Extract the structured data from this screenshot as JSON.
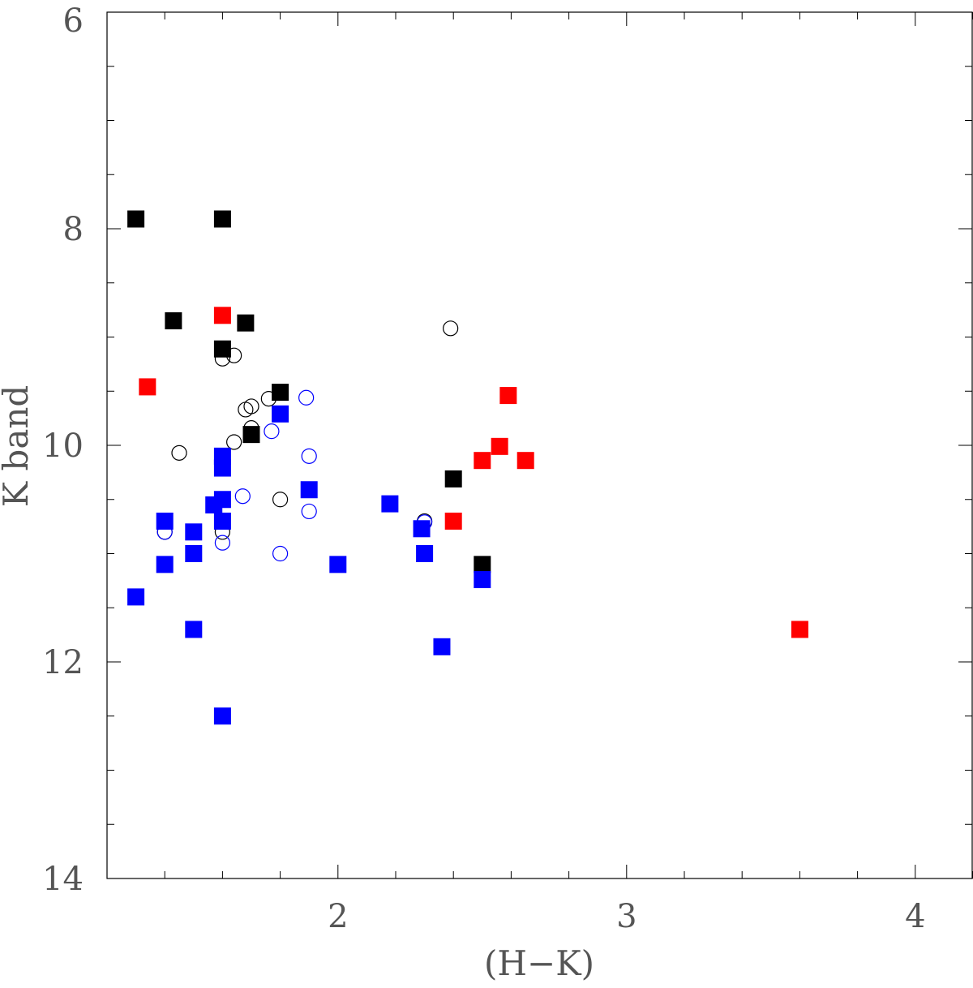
{
  "chart_data": {
    "type": "scatter",
    "title": "",
    "xlabel": "(H−K)",
    "ylabel": "K band",
    "xlim": [
      1.2,
      4.2
    ],
    "ylim": [
      14,
      6
    ],
    "y_inverted": true,
    "grid": false,
    "x_ticks": [
      {
        "value": 2,
        "label": "2"
      },
      {
        "value": 3,
        "label": "3"
      },
      {
        "value": 4,
        "label": "4"
      }
    ],
    "y_ticks": [
      {
        "value": 6,
        "label": "6"
      },
      {
        "value": 8,
        "label": "8"
      },
      {
        "value": 10,
        "label": "10"
      },
      {
        "value": 12,
        "label": "12"
      },
      {
        "value": 14,
        "label": "14"
      }
    ],
    "series": [
      {
        "marker": "open-circle",
        "color": "#000000",
        "points": [
          [
            1.6,
            9.2
          ],
          [
            1.64,
            9.17
          ],
          [
            1.45,
            10.07
          ],
          [
            1.64,
            9.97
          ],
          [
            1.68,
            9.67
          ],
          [
            1.7,
            9.64
          ],
          [
            1.7,
            9.84
          ],
          [
            1.76,
            9.57
          ],
          [
            1.8,
            10.5
          ],
          [
            2.39,
            8.92
          ],
          [
            2.3,
            10.7
          ],
          [
            1.4,
            10.8
          ],
          [
            1.6,
            10.8
          ]
        ]
      },
      {
        "marker": "open-circle",
        "color": "#0000ff",
        "points": [
          [
            1.89,
            9.56
          ],
          [
            1.77,
            9.87
          ],
          [
            1.9,
            10.1
          ],
          [
            1.67,
            10.47
          ],
          [
            1.9,
            10.61
          ],
          [
            1.6,
            10.9
          ],
          [
            1.8,
            11.0
          ],
          [
            2.3,
            10.71
          ],
          [
            1.4,
            10.8
          ]
        ]
      },
      {
        "marker": "filled-square",
        "color": "#000000",
        "points": [
          [
            1.3,
            7.91
          ],
          [
            1.6,
            7.91
          ],
          [
            1.43,
            8.85
          ],
          [
            1.68,
            8.87
          ],
          [
            1.6,
            9.11
          ],
          [
            1.8,
            9.51
          ],
          [
            1.7,
            9.9
          ],
          [
            2.4,
            10.31
          ],
          [
            2.5,
            11.1
          ]
        ]
      },
      {
        "marker": "filled-square",
        "color": "#ff0000",
        "points": [
          [
            1.6,
            8.8
          ],
          [
            1.34,
            9.46
          ],
          [
            2.59,
            9.54
          ],
          [
            2.56,
            10.01
          ],
          [
            2.5,
            10.14
          ],
          [
            2.65,
            10.14
          ],
          [
            2.4,
            10.7
          ],
          [
            3.6,
            11.7
          ]
        ]
      },
      {
        "marker": "filled-square",
        "color": "#0000ff",
        "points": [
          [
            1.8,
            9.71
          ],
          [
            1.6,
            10.1
          ],
          [
            1.6,
            10.21
          ],
          [
            1.6,
            10.5
          ],
          [
            1.9,
            10.41
          ],
          [
            1.57,
            10.55
          ],
          [
            1.4,
            10.7
          ],
          [
            1.6,
            10.7
          ],
          [
            1.5,
            10.8
          ],
          [
            1.5,
            11.0
          ],
          [
            1.4,
            11.1
          ],
          [
            1.3,
            11.4
          ],
          [
            1.5,
            11.7
          ],
          [
            1.6,
            12.5
          ],
          [
            2.0,
            11.1
          ],
          [
            2.18,
            10.54
          ],
          [
            2.29,
            10.77
          ],
          [
            2.3,
            11.0
          ],
          [
            2.36,
            11.86
          ],
          [
            2.5,
            11.24
          ]
        ]
      }
    ]
  }
}
